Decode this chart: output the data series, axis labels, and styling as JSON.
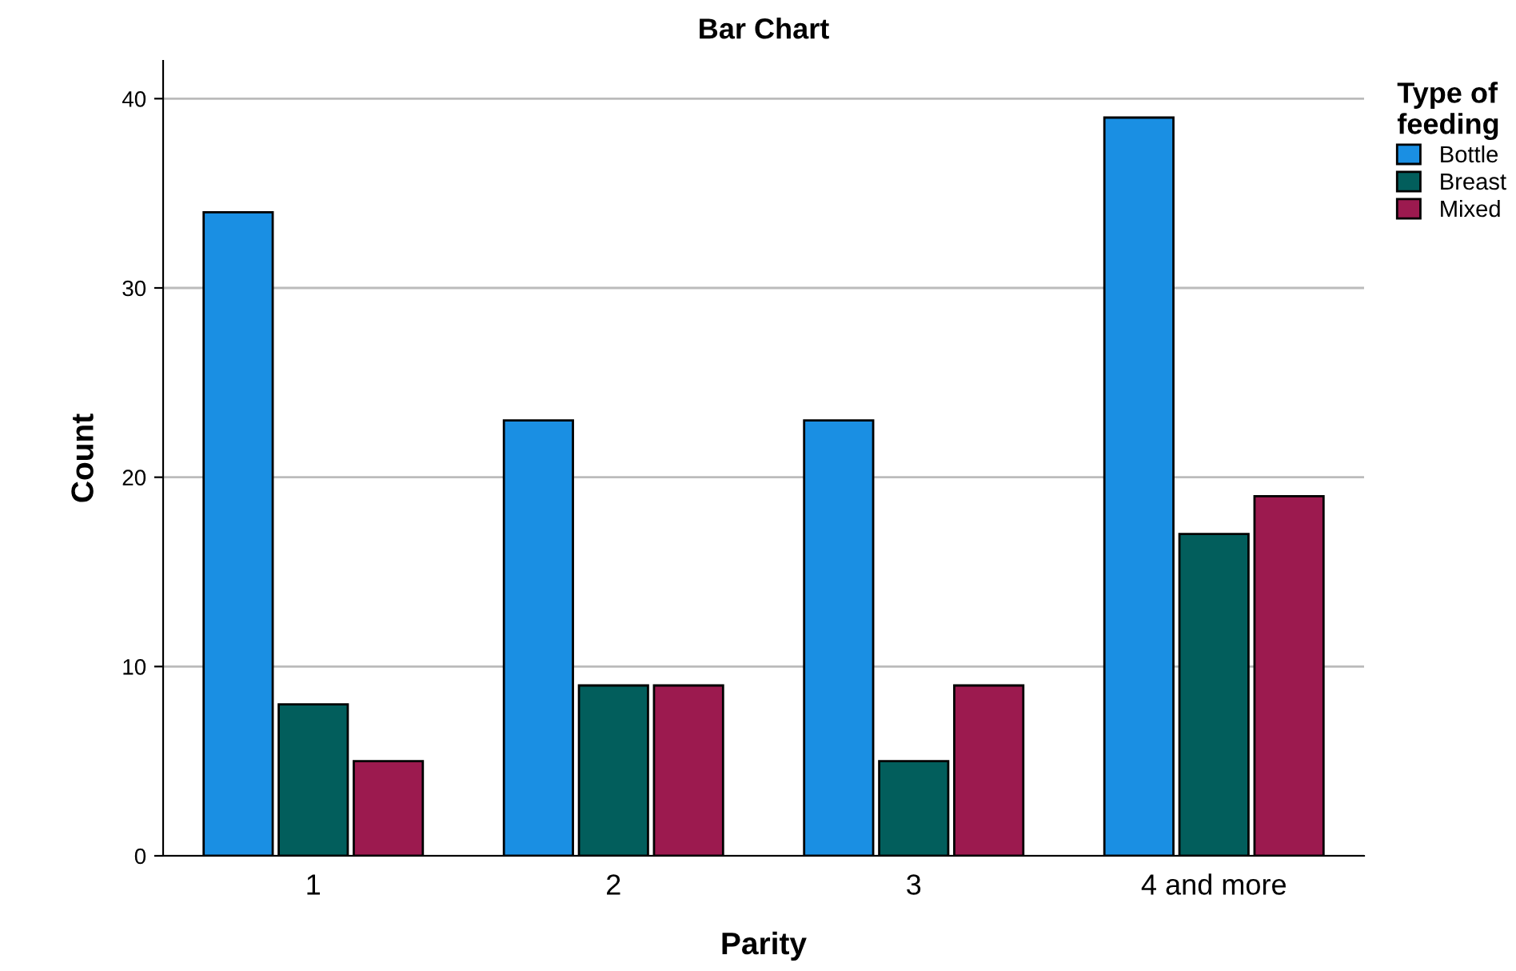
{
  "chart_data": {
    "type": "bar",
    "title": "Bar Chart",
    "xlabel": "Parity",
    "ylabel": "Count",
    "legend_title": "Type of\nfeeding",
    "categories": [
      "1",
      "2",
      "3",
      "4 and more"
    ],
    "series": [
      {
        "name": "Bottle",
        "color": "#1a8fe3",
        "values": [
          34,
          23,
          23,
          39
        ]
      },
      {
        "name": "Breast",
        "color": "#025e5c",
        "values": [
          8,
          9,
          5,
          17
        ]
      },
      {
        "name": "Mixed",
        "color": "#9c1a4f",
        "values": [
          5,
          9,
          9,
          19
        ]
      }
    ],
    "ylim": [
      0,
      42
    ],
    "yticks": [
      0,
      10,
      20,
      30,
      40
    ],
    "grid": "y",
    "legend": "top right"
  }
}
